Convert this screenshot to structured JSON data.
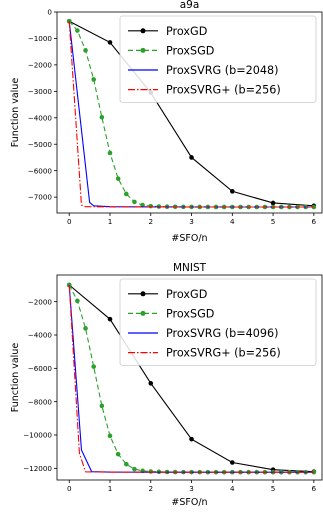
{
  "chart_data": [
    {
      "type": "line",
      "title": "a9a",
      "xlabel": "#SFO/n",
      "ylabel": "Function value",
      "xlim": [
        -0.3,
        6.2
      ],
      "ylim": [
        -7600,
        0
      ],
      "xticks": [
        0,
        1,
        2,
        3,
        4,
        5,
        6
      ],
      "yticks": [
        0,
        -1000,
        -2000,
        -3000,
        -4000,
        -5000,
        -6000,
        -7000
      ],
      "grid": false,
      "legend": "top-right",
      "series": [
        {
          "name": "ProxGD",
          "color": "#000000",
          "style": "solid",
          "marker": "circle",
          "x": [
            0,
            1,
            2,
            3,
            4,
            5,
            6
          ],
          "y": [
            -350,
            -1150,
            -3050,
            -5500,
            -6780,
            -7220,
            -7330
          ]
        },
        {
          "name": "ProxSGD",
          "color": "#2ca02c",
          "style": "dashed",
          "marker": "circle",
          "x": [
            0,
            0.2,
            0.4,
            0.6,
            0.8,
            1.0,
            1.2,
            1.4,
            1.6,
            1.8,
            2.0,
            2.2,
            2.4,
            2.6,
            2.8,
            3.0,
            3.2,
            3.4,
            3.6,
            3.8,
            4.0,
            4.2,
            4.4,
            4.6,
            4.8,
            5.0,
            5.2,
            5.4,
            5.6,
            5.8,
            6.0
          ],
          "y": [
            -350,
            -700,
            -1450,
            -2550,
            -3980,
            -5330,
            -6300,
            -6880,
            -7180,
            -7300,
            -7340,
            -7355,
            -7362,
            -7365,
            -7368,
            -7370,
            -7371,
            -7372,
            -7372,
            -7372,
            -7373,
            -7373,
            -7373,
            -7373,
            -7373,
            -7373,
            -7373,
            -7373,
            -7373,
            -7373,
            -7373
          ]
        },
        {
          "name": "ProxSVRG (b=2048)",
          "color": "#0000ff",
          "style": "solid",
          "marker": "none",
          "x": [
            0,
            0.5,
            0.6,
            1.0,
            2.0,
            3.0,
            4.0,
            5.0,
            6.0
          ],
          "y": [
            -350,
            -7200,
            -7330,
            -7360,
            -7370,
            -7373,
            -7373,
            -7373,
            -7373
          ]
        },
        {
          "name": "ProxSVRG+ (b=256)",
          "color": "#ff0000",
          "style": "dashdot",
          "marker": "none",
          "x": [
            0,
            0.3,
            0.4,
            1.0,
            2.0,
            3.0,
            4.0,
            5.0,
            6.0
          ],
          "y": [
            -350,
            -7300,
            -7360,
            -7370,
            -7372,
            -7373,
            -7373,
            -7373,
            -7373
          ]
        }
      ]
    },
    {
      "type": "line",
      "title": "MNIST",
      "xlabel": "#SFO/n",
      "ylabel": "Function value",
      "xlim": [
        -0.3,
        6.2
      ],
      "ylim": [
        -12700,
        -400
      ],
      "xticks": [
        0,
        1,
        2,
        3,
        4,
        5,
        6
      ],
      "yticks": [
        -2000,
        -4000,
        -6000,
        -8000,
        -10000,
        -12000
      ],
      "grid": false,
      "legend": "top-right",
      "series": [
        {
          "name": "ProxGD",
          "color": "#000000",
          "style": "solid",
          "marker": "circle",
          "x": [
            0,
            1,
            2,
            3,
            4,
            5,
            6
          ],
          "y": [
            -1000,
            -3050,
            -6900,
            -10250,
            -11650,
            -12080,
            -12200
          ]
        },
        {
          "name": "ProxSGD",
          "color": "#2ca02c",
          "style": "dashed",
          "marker": "circle",
          "x": [
            0,
            0.2,
            0.4,
            0.6,
            0.8,
            1.0,
            1.2,
            1.4,
            1.6,
            1.8,
            2.0,
            2.2,
            2.4,
            2.6,
            2.8,
            3.0,
            3.2,
            3.4,
            3.6,
            3.8,
            4.0,
            4.2,
            4.4,
            4.6,
            4.8,
            5.0,
            5.2,
            5.4,
            5.6,
            5.8,
            6.0
          ],
          "y": [
            -1000,
            -1950,
            -3600,
            -5900,
            -8250,
            -10050,
            -11150,
            -11750,
            -12050,
            -12150,
            -12190,
            -12210,
            -12220,
            -12225,
            -12228,
            -12230,
            -12231,
            -12232,
            -12232,
            -12232,
            -12233,
            -12233,
            -12233,
            -12233,
            -12233,
            -12233,
            -12233,
            -12233,
            -12233,
            -12233,
            -12233
          ]
        },
        {
          "name": "ProxSVRG (b=4096)",
          "color": "#0000ff",
          "style": "solid",
          "marker": "none",
          "x": [
            0,
            0.3,
            0.55,
            1.0,
            2.0,
            3.0,
            4.0,
            5.0,
            6.0
          ],
          "y": [
            -1000,
            -10900,
            -12200,
            -12225,
            -12230,
            -12233,
            -12233,
            -12233,
            -12233
          ]
        },
        {
          "name": "ProxSVRG+ (b=256)",
          "color": "#ff0000",
          "style": "dashdot",
          "marker": "none",
          "x": [
            0,
            0.25,
            0.4,
            1.0,
            2.0,
            3.0,
            4.0,
            5.0,
            6.0
          ],
          "y": [
            -1000,
            -11100,
            -12210,
            -12228,
            -12231,
            -12233,
            -12233,
            -12233,
            -12233
          ]
        }
      ]
    }
  ]
}
